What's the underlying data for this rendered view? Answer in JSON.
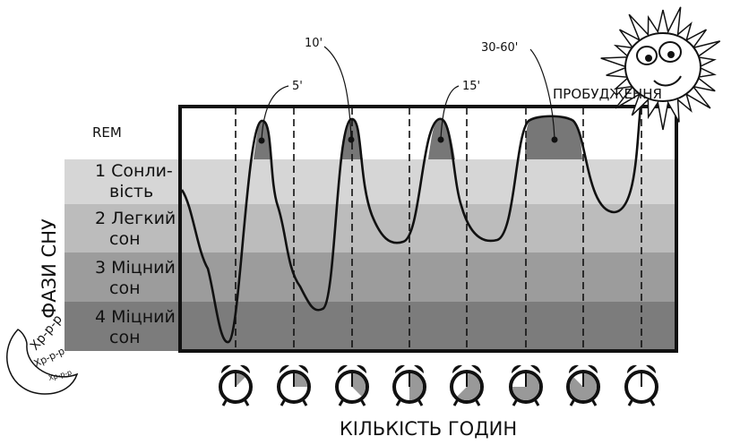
{
  "rem_label": "REM",
  "y_axis_title": "ФАЗИ СНУ",
  "x_axis_title": "КІЛЬКІСТЬ ГОДИН",
  "wake_label": "ПРОБУДЖЕННЯ",
  "phases": [
    {
      "lines": [
        "1 Сонли-",
        "вість"
      ]
    },
    {
      "lines": [
        "2 Легкий",
        "сон"
      ]
    },
    {
      "lines": [
        "3 Міцний",
        "сон"
      ]
    },
    {
      "lines": [
        "4 Міцний",
        "сон"
      ]
    }
  ],
  "rem_durations": [
    "5'",
    "10'",
    "15'",
    "30-60'"
  ],
  "snores": [
    "Хр-р-р",
    "Хр-р-р",
    "Хр-р-р"
  ]
}
